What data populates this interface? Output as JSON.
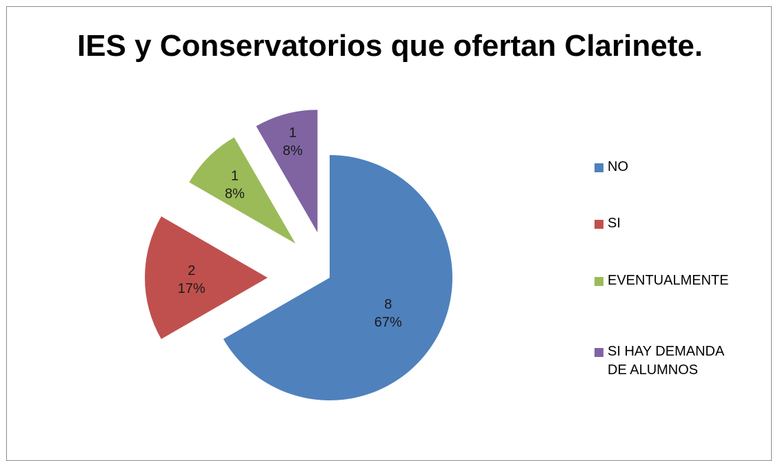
{
  "chart_data": {
    "type": "pie",
    "title": "IES  y Conservatorios que ofertan Clarinete.",
    "slices": [
      {
        "label": "NO",
        "value": 8,
        "percent": "67%",
        "color": "#4f81bd",
        "exploded": false
      },
      {
        "label": "SI",
        "value": 2,
        "percent": "17%",
        "color": "#c0504d",
        "exploded": true
      },
      {
        "label": "EVENTUALMENTE",
        "value": 1,
        "percent": "8%",
        "color": "#9bbb59",
        "exploded": true
      },
      {
        "label": "SI HAY DEMANDA DE ALUMNOS",
        "value": 1,
        "percent": "8%",
        "color": "#8064a2",
        "exploded": true
      }
    ],
    "legend_position": "right"
  }
}
